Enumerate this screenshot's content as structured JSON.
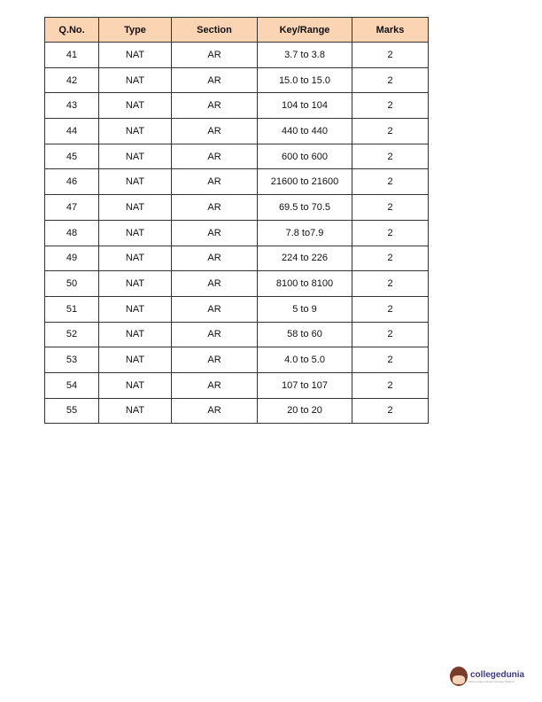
{
  "table": {
    "headers": [
      "Q.No.",
      "Type",
      "Section",
      "Key/Range",
      "Marks"
    ],
    "rows": [
      [
        "41",
        "NAT",
        "AR",
        "3.7 to 3.8",
        "2"
      ],
      [
        "42",
        "NAT",
        "AR",
        "15.0 to 15.0",
        "2"
      ],
      [
        "43",
        "NAT",
        "AR",
        "104 to 104",
        "2"
      ],
      [
        "44",
        "NAT",
        "AR",
        "440 to 440",
        "2"
      ],
      [
        "45",
        "NAT",
        "AR",
        "600 to 600",
        "2"
      ],
      [
        "46",
        "NAT",
        "AR",
        "21600 to 21600",
        "2"
      ],
      [
        "47",
        "NAT",
        "AR",
        "69.5 to 70.5",
        "2"
      ],
      [
        "48",
        "NAT",
        "AR",
        "7.8 to7.9",
        "2"
      ],
      [
        "49",
        "NAT",
        "AR",
        "224 to 226",
        "2"
      ],
      [
        "50",
        "NAT",
        "AR",
        "8100 to 8100",
        "2"
      ],
      [
        "51",
        "NAT",
        "AR",
        "5 to 9",
        "2"
      ],
      [
        "52",
        "NAT",
        "AR",
        "58 to 60",
        "2"
      ],
      [
        "53",
        "NAT",
        "AR",
        "4.0 to 5.0",
        "2"
      ],
      [
        "54",
        "NAT",
        "AR",
        "107 to 107",
        "2"
      ],
      [
        "55",
        "NAT",
        "AR",
        "20 to 20",
        "2"
      ]
    ]
  },
  "logo": {
    "name": "collegedunia",
    "tagline": "India's Largest Student Review Platform"
  },
  "colors": {
    "header_bg": "#fbd4b4"
  }
}
